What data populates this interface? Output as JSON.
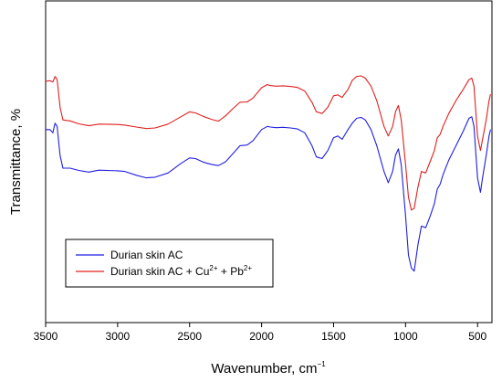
{
  "chart_data": {
    "type": "line",
    "xlabel_main": "Wavenumber, cm",
    "xlabel_sup": "−1",
    "ylabel": "Transmittance, %",
    "x_ticks": [
      3500,
      3000,
      2500,
      2000,
      1500,
      1000,
      500
    ],
    "x_tick_labels": [
      "3500",
      "3000",
      "2500",
      "2000",
      "1500",
      "1000",
      "500"
    ],
    "xlim": [
      3500,
      400
    ],
    "y_ticks_labeled": false,
    "ylim": [
      0,
      100
    ],
    "grid": false,
    "legend_position": "lower-left",
    "series": [
      {
        "name_parts": {
          "text": "Durian skin AC"
        },
        "color": "#1f1fe0",
        "points": [
          [
            3500,
            60
          ],
          [
            3470,
            60
          ],
          [
            3450,
            59
          ],
          [
            3435,
            62
          ],
          [
            3420,
            61
          ],
          [
            3400,
            52
          ],
          [
            3380,
            48
          ],
          [
            3330,
            48
          ],
          [
            3270,
            47.3
          ],
          [
            3200,
            46.8
          ],
          [
            3130,
            47.4
          ],
          [
            3000,
            47.2
          ],
          [
            2950,
            47
          ],
          [
            2870,
            45.8
          ],
          [
            2800,
            45
          ],
          [
            2740,
            45.2
          ],
          [
            2650,
            46.5
          ],
          [
            2560,
            49.5
          ],
          [
            2500,
            51.2
          ],
          [
            2460,
            51
          ],
          [
            2400,
            49.8
          ],
          [
            2350,
            49.2
          ],
          [
            2300,
            48.8
          ],
          [
            2250,
            50
          ],
          [
            2200,
            52.5
          ],
          [
            2150,
            55
          ],
          [
            2100,
            55.2
          ],
          [
            2060,
            56.5
          ],
          [
            2000,
            60
          ],
          [
            1960,
            61
          ],
          [
            1940,
            60.8
          ],
          [
            1900,
            60.6
          ],
          [
            1850,
            60.7
          ],
          [
            1800,
            60.5
          ],
          [
            1750,
            60.2
          ],
          [
            1700,
            59
          ],
          [
            1650,
            55
          ],
          [
            1620,
            51.5
          ],
          [
            1580,
            51
          ],
          [
            1540,
            53.5
          ],
          [
            1500,
            57.5
          ],
          [
            1470,
            58
          ],
          [
            1440,
            57
          ],
          [
            1400,
            60
          ],
          [
            1370,
            62
          ],
          [
            1340,
            63.5
          ],
          [
            1310,
            63.8
          ],
          [
            1280,
            63
          ],
          [
            1240,
            60
          ],
          [
            1200,
            55
          ],
          [
            1150,
            47
          ],
          [
            1120,
            43.5
          ],
          [
            1090,
            47
          ],
          [
            1070,
            52
          ],
          [
            1050,
            54
          ],
          [
            1030,
            49
          ],
          [
            1000,
            33
          ],
          [
            980,
            21
          ],
          [
            960,
            17
          ],
          [
            940,
            16
          ],
          [
            915,
            24
          ],
          [
            890,
            30
          ],
          [
            860,
            29.5
          ],
          [
            830,
            33
          ],
          [
            800,
            37
          ],
          [
            780,
            41.5
          ],
          [
            760,
            43
          ],
          [
            740,
            46
          ],
          [
            700,
            50.5
          ],
          [
            650,
            55
          ],
          [
            600,
            59.5
          ],
          [
            560,
            63.5
          ],
          [
            540,
            64
          ],
          [
            525,
            61
          ],
          [
            500,
            45
          ],
          [
            480,
            40.5
          ],
          [
            465,
            45
          ],
          [
            440,
            52
          ],
          [
            420,
            58
          ],
          [
            410,
            60
          ]
        ]
      },
      {
        "name_parts": {
          "text": "Durian skin AC + Cu",
          "sup1": "2+",
          "mid": " + Pb",
          "sup2": "2+"
        },
        "color": "#e01f1f",
        "points": [
          [
            3500,
            75
          ],
          [
            3470,
            75.2
          ],
          [
            3450,
            74.8
          ],
          [
            3435,
            76.5
          ],
          [
            3420,
            75.5
          ],
          [
            3400,
            67
          ],
          [
            3380,
            63
          ],
          [
            3330,
            62.7
          ],
          [
            3270,
            61.8
          ],
          [
            3200,
            61.2
          ],
          [
            3130,
            61.7
          ],
          [
            3000,
            61.6
          ],
          [
            2950,
            61.4
          ],
          [
            2870,
            60.8
          ],
          [
            2800,
            60.3
          ],
          [
            2740,
            60.5
          ],
          [
            2650,
            61.7
          ],
          [
            2560,
            64
          ],
          [
            2500,
            65.5
          ],
          [
            2460,
            65.2
          ],
          [
            2400,
            64
          ],
          [
            2350,
            63.2
          ],
          [
            2300,
            62.6
          ],
          [
            2250,
            64.3
          ],
          [
            2200,
            66.5
          ],
          [
            2150,
            68.5
          ],
          [
            2100,
            68.6
          ],
          [
            2060,
            69.8
          ],
          [
            2000,
            73
          ],
          [
            1960,
            74
          ],
          [
            1940,
            73.7
          ],
          [
            1900,
            73.5
          ],
          [
            1850,
            73.6
          ],
          [
            1800,
            73.4
          ],
          [
            1750,
            73.1
          ],
          [
            1700,
            72
          ],
          [
            1650,
            68.5
          ],
          [
            1620,
            65.5
          ],
          [
            1580,
            65
          ],
          [
            1540,
            67
          ],
          [
            1500,
            70.5
          ],
          [
            1470,
            70.8
          ],
          [
            1440,
            70
          ],
          [
            1400,
            72.5
          ],
          [
            1370,
            75.3
          ],
          [
            1340,
            76.5
          ],
          [
            1310,
            76.7
          ],
          [
            1280,
            76
          ],
          [
            1240,
            73.5
          ],
          [
            1200,
            69
          ],
          [
            1150,
            61
          ],
          [
            1120,
            58
          ],
          [
            1090,
            61
          ],
          [
            1070,
            65.5
          ],
          [
            1050,
            67.5
          ],
          [
            1030,
            63
          ],
          [
            1000,
            49
          ],
          [
            980,
            39
          ],
          [
            960,
            35
          ],
          [
            940,
            35.5
          ],
          [
            915,
            42
          ],
          [
            890,
            47
          ],
          [
            860,
            46.5
          ],
          [
            830,
            50
          ],
          [
            800,
            53.5
          ],
          [
            780,
            57.5
          ],
          [
            760,
            58.5
          ],
          [
            740,
            61
          ],
          [
            700,
            65
          ],
          [
            650,
            69
          ],
          [
            600,
            72.5
          ],
          [
            560,
            75.5
          ],
          [
            540,
            76
          ],
          [
            525,
            73.5
          ],
          [
            500,
            58
          ],
          [
            480,
            53.5
          ],
          [
            465,
            57
          ],
          [
            440,
            63
          ],
          [
            420,
            69
          ],
          [
            410,
            71
          ]
        ]
      }
    ]
  }
}
